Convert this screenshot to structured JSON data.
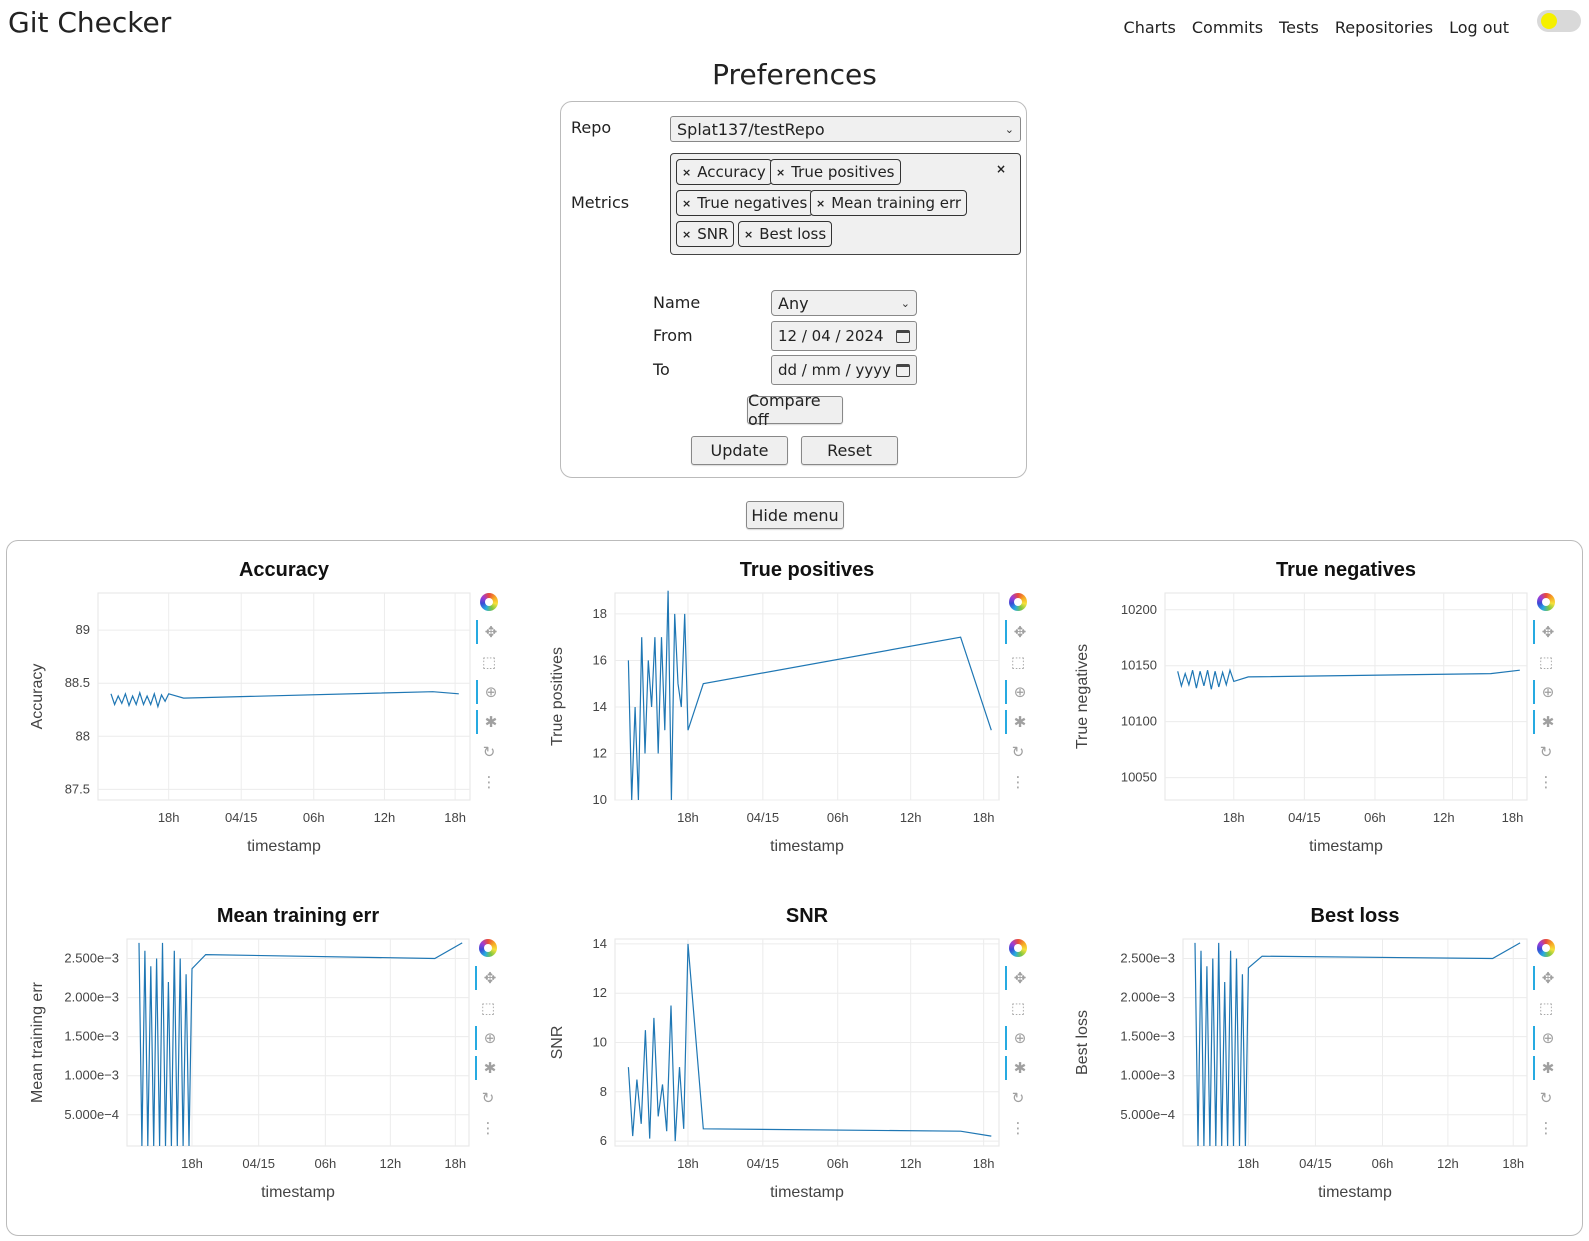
{
  "app": {
    "title": "Git Checker"
  },
  "nav": {
    "items": [
      "Charts",
      "Commits",
      "Tests",
      "Repositories",
      "Log out"
    ]
  },
  "colors": {
    "line": "#1f77b4",
    "toggle_knob": "#f5f000",
    "toolbar_active": "#26aae1"
  },
  "preferences": {
    "title": "Preferences",
    "repo_label": "Repo",
    "repo_value": "Splat137/testRepo",
    "metrics_label": "Metrics",
    "metrics_tags": [
      "Accuracy",
      "True positives",
      "True negatives",
      "Mean training err",
      "SNR",
      "Best loss"
    ],
    "tag_remove_glyph": "×",
    "clear_glyph": "×",
    "name_label": "Name",
    "name_value": "Any",
    "from_label": "From",
    "from_value": "12 / 04 / 2024",
    "to_label": "To",
    "to_placeholder": "dd / mm / yyyy",
    "compare_button": "Compare off",
    "update_button": "Update",
    "reset_button": "Reset"
  },
  "hide_menu_button": "Hide menu",
  "toolbar_icons": [
    "bokeh-logo-icon",
    "pan-icon",
    "box-zoom-icon",
    "wheel-zoom-icon",
    "hover-icon",
    "reset-icon",
    "more-icon"
  ],
  "chart_data": [
    {
      "type": "line",
      "title": "Accuracy",
      "xlabel": "timestamp",
      "ylabel": "Accuracy",
      "x_ticks": [
        "18h",
        "04/15",
        "06h",
        "12h",
        "18h"
      ],
      "y_ticks": [
        "87.5",
        "88",
        "88.5",
        "89"
      ],
      "ylim": [
        87.4,
        89.35
      ],
      "grid": true,
      "series": [
        {
          "values": [
            88.4,
            88.3,
            88.38,
            88.31,
            88.4,
            88.29,
            88.38,
            88.3,
            88.41,
            88.3,
            88.38,
            88.3,
            88.4,
            88.28,
            88.39,
            88.33,
            88.4,
            88.36,
            88.42,
            88.4
          ]
        }
      ]
    },
    {
      "type": "line",
      "title": "True positives",
      "xlabel": "timestamp",
      "ylabel": "True positives",
      "x_ticks": [
        "18h",
        "04/15",
        "06h",
        "12h",
        "18h"
      ],
      "y_ticks": [
        "10",
        "12",
        "14",
        "16",
        "18"
      ],
      "ylim": [
        10,
        18.9
      ],
      "grid": true,
      "series": [
        {
          "values": [
            16,
            10,
            14,
            10,
            17,
            12,
            16,
            14,
            17,
            12,
            17,
            13,
            19,
            10,
            18,
            15,
            14,
            18,
            13,
            15,
            17,
            13
          ]
        }
      ]
    },
    {
      "type": "line",
      "title": "True negatives",
      "xlabel": "timestamp",
      "ylabel": "True negatives",
      "x_ticks": [
        "18h",
        "04/15",
        "06h",
        "12h",
        "18h"
      ],
      "y_ticks": [
        "10050",
        "10100",
        "10150",
        "10200"
      ],
      "ylim": [
        10030,
        10215
      ],
      "grid": true,
      "series": [
        {
          "values": [
            10145,
            10132,
            10143,
            10133,
            10146,
            10130,
            10145,
            10132,
            10146,
            10129,
            10145,
            10131,
            10144,
            10133,
            10146,
            10136,
            10140,
            10143,
            10146
          ]
        }
      ]
    },
    {
      "type": "line",
      "title": "Mean training err",
      "xlabel": "timestamp",
      "ylabel": "Mean training err",
      "x_ticks": [
        "18h",
        "04/15",
        "06h",
        "12h",
        "18h"
      ],
      "y_ticks": [
        "5.000e−4",
        "1.000e−3",
        "1.500e−3",
        "2.000e−3",
        "2.500e−3"
      ],
      "ylim": [
        0.0001,
        0.00275
      ],
      "grid": true,
      "series": [
        {
          "values": [
            0.0027,
            0.0001,
            0.0026,
            0.0001,
            0.0024,
            0.0001,
            0.0025,
            0.0001,
            0.0027,
            0.0001,
            0.0022,
            0.0001,
            0.0026,
            0.0001,
            0.0025,
            0.0001,
            0.0023,
            0.0001,
            0.00237,
            0.00255,
            0.0025,
            0.0027
          ]
        }
      ]
    },
    {
      "type": "line",
      "title": "SNR",
      "xlabel": "timestamp",
      "ylabel": "SNR",
      "x_ticks": [
        "18h",
        "04/15",
        "06h",
        "12h",
        "18h"
      ],
      "y_ticks": [
        "6",
        "8",
        "10",
        "12",
        "14"
      ],
      "ylim": [
        5.8,
        14.2
      ],
      "grid": true,
      "series": [
        {
          "values": [
            9,
            6.2,
            8.5,
            6.7,
            10.5,
            6.1,
            11,
            7,
            8.3,
            6.4,
            11.5,
            6,
            9,
            6.5,
            14,
            6.5,
            6.4,
            6.2
          ]
        }
      ]
    },
    {
      "type": "line",
      "title": "Best loss",
      "xlabel": "timestamp",
      "ylabel": "Best loss",
      "x_ticks": [
        "18h",
        "04/15",
        "06h",
        "12h",
        "18h"
      ],
      "y_ticks": [
        "5.000e−4",
        "1.000e−3",
        "1.500e−3",
        "2.000e−3",
        "2.500e−3"
      ],
      "ylim": [
        0.0001,
        0.00275
      ],
      "grid": true,
      "series": [
        {
          "values": [
            0.0027,
            0.0001,
            0.0026,
            0.0001,
            0.0024,
            0.0001,
            0.0025,
            0.0001,
            0.0027,
            0.0001,
            0.0022,
            0.0001,
            0.0026,
            0.0001,
            0.0025,
            0.0001,
            0.0023,
            0.0001,
            0.00238,
            0.00253,
            0.0025,
            0.0027
          ]
        }
      ]
    }
  ]
}
